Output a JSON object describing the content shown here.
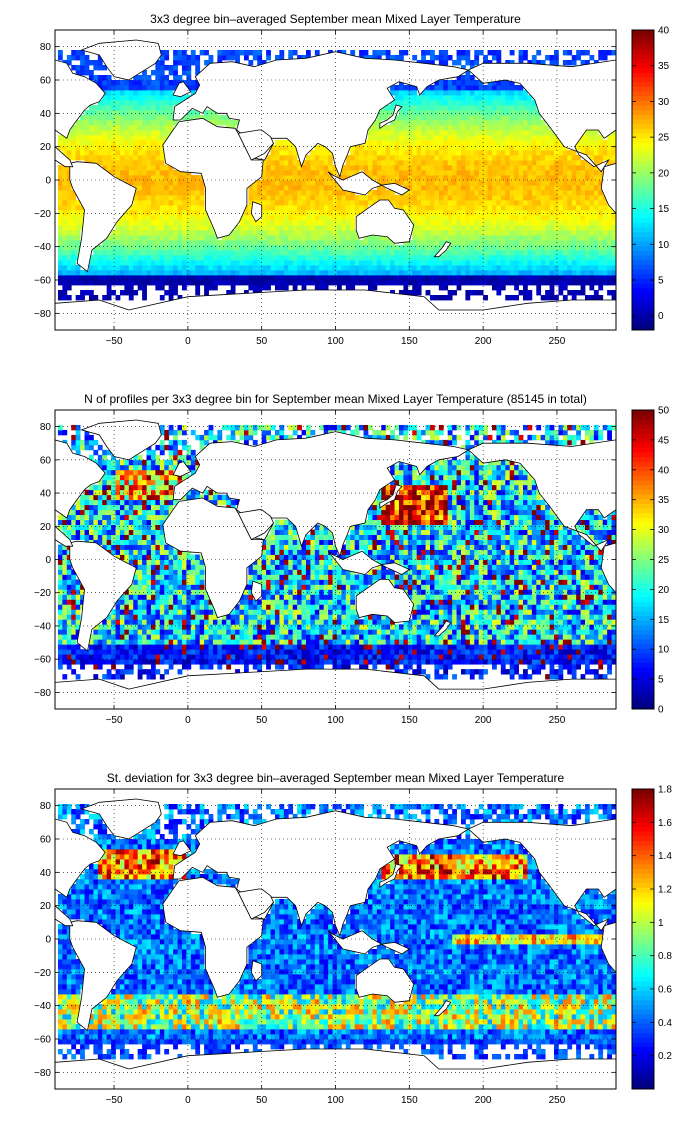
{
  "chart_data": [
    {
      "type": "heatmap",
      "title": "3x3 degree bin–averaged September mean Mixed Layer Temperature",
      "x_ticks": [
        -50,
        0,
        50,
        100,
        150,
        200,
        250
      ],
      "y_ticks": [
        -80,
        -60,
        -40,
        -20,
        0,
        20,
        40,
        60,
        80
      ],
      "xlim": [
        -90,
        290
      ],
      "ylim": [
        -90,
        90
      ],
      "grid": true,
      "colormap": "jet",
      "colorbar": {
        "ticks": [
          0,
          5,
          10,
          15,
          20,
          25,
          30,
          35,
          40
        ],
        "range": [
          -2,
          40
        ]
      },
      "field": "temperature"
    },
    {
      "type": "heatmap",
      "title": "N of profiles per 3x3 degree bin for September mean Mixed Layer Temperature  (85145 in total)",
      "x_ticks": [
        -50,
        0,
        50,
        100,
        150,
        200,
        250
      ],
      "y_ticks": [
        -80,
        -60,
        -40,
        -20,
        0,
        20,
        40,
        60,
        80
      ],
      "xlim": [
        -90,
        290
      ],
      "ylim": [
        -90,
        90
      ],
      "grid": true,
      "colormap": "jet",
      "colorbar": {
        "ticks": [
          0,
          5,
          10,
          15,
          20,
          25,
          30,
          35,
          40,
          45,
          50
        ],
        "range": [
          0,
          50
        ]
      },
      "field": "count"
    },
    {
      "type": "heatmap",
      "title": "St. deviation for 3x3 degree bin–averaged September mean Mixed Layer Temperature",
      "x_ticks": [
        -50,
        0,
        50,
        100,
        150,
        200,
        250
      ],
      "y_ticks": [
        -80,
        -60,
        -40,
        -20,
        0,
        20,
        40,
        60,
        80
      ],
      "xlim": [
        -90,
        290
      ],
      "ylim": [
        -90,
        90
      ],
      "grid": true,
      "colormap": "jet",
      "colorbar": {
        "ticks": [
          0.2,
          0.4,
          0.6,
          0.8,
          1,
          1.2,
          1.4,
          1.6,
          1.8
        ],
        "range": [
          0,
          1.8
        ]
      },
      "field": "stdev"
    }
  ]
}
